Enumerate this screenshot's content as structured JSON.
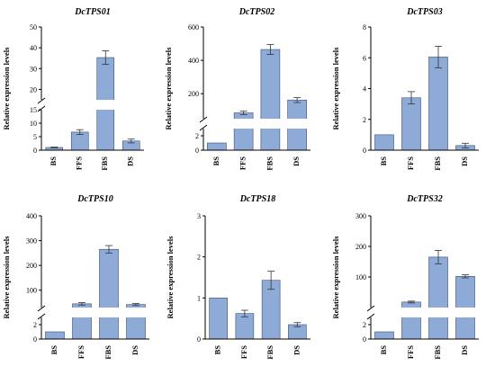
{
  "figure": {
    "ylabel": "Relative expression levels",
    "colors": {
      "bar": "#8eabd8",
      "bar_stroke": "#3a4e72",
      "axis": "#000000"
    }
  },
  "chart_data": [
    {
      "type": "bar",
      "title": "DcTPS01",
      "ylabel": "Relative expression levels",
      "categories": [
        "BS",
        "FFS",
        "FBS",
        "DS"
      ],
      "values": [
        1,
        6.7,
        35.3,
        3.4
      ],
      "errors": [
        0.15,
        0.9,
        3.3,
        0.7
      ],
      "axis_break": true,
      "lower_range": [
        0,
        15
      ],
      "upper_range": [
        15,
        50
      ],
      "lower_ticks": [
        "0",
        "5",
        "10",
        "15"
      ],
      "upper_ticks": [
        "20",
        "30",
        "40",
        "50"
      ]
    },
    {
      "type": "bar",
      "title": "DcTPS02",
      "ylabel": "Relative expression levels",
      "categories": [
        "BS",
        "FFS",
        "FBS",
        "DS"
      ],
      "values": [
        1,
        85,
        465,
        162
      ],
      "errors": [
        0,
        10,
        30,
        15
      ],
      "axis_break": true,
      "lower_range": [
        0,
        3
      ],
      "upper_range": [
        50,
        600
      ],
      "lower_ticks": [
        "0",
        "2"
      ],
      "upper_ticks": [
        "200",
        "400",
        "600"
      ]
    },
    {
      "type": "bar",
      "title": "DcTPS03",
      "ylabel": "Relative expression levels",
      "categories": [
        "BS",
        "FFS",
        "FBS",
        "DS"
      ],
      "values": [
        1,
        3.4,
        6.05,
        0.3
      ],
      "errors": [
        0,
        0.4,
        0.7,
        0.15
      ],
      "axis_break": false,
      "ylim": [
        0,
        8
      ],
      "ticks": [
        "0",
        "2",
        "4",
        "6",
        "8"
      ]
    },
    {
      "type": "bar",
      "title": "DcTPS10",
      "ylabel": "Relative expression levels",
      "categories": [
        "BS",
        "FFS",
        "FBS",
        "DS"
      ],
      "values": [
        1,
        45,
        265,
        42
      ],
      "errors": [
        0,
        5,
        15,
        4
      ],
      "axis_break": true,
      "lower_range": [
        0,
        3
      ],
      "upper_range": [
        30,
        400
      ],
      "lower_ticks": [
        "0",
        "2"
      ],
      "upper_ticks": [
        "100",
        "200",
        "300",
        "400"
      ]
    },
    {
      "type": "bar",
      "title": "DcTPS18",
      "ylabel": "Relative expression levels",
      "categories": [
        "BS",
        "FFS",
        "FBS",
        "DS"
      ],
      "values": [
        1,
        0.62,
        1.43,
        0.35
      ],
      "errors": [
        0,
        0.08,
        0.22,
        0.05
      ],
      "axis_break": false,
      "ylim": [
        0,
        3
      ],
      "ticks": [
        "0",
        "1",
        "2",
        "3"
      ]
    },
    {
      "type": "bar",
      "title": "DcTPS32",
      "ylabel": "Relative expression levels",
      "categories": [
        "BS",
        "FFS",
        "FBS",
        "DS"
      ],
      "values": [
        1,
        18,
        165,
        102
      ],
      "errors": [
        0,
        3,
        22,
        5
      ],
      "axis_break": true,
      "lower_range": [
        0,
        3
      ],
      "upper_range": [
        0,
        300
      ],
      "lower_ticks": [
        "0",
        "2"
      ],
      "upper_ticks": [
        "100",
        "200",
        "300"
      ]
    }
  ]
}
